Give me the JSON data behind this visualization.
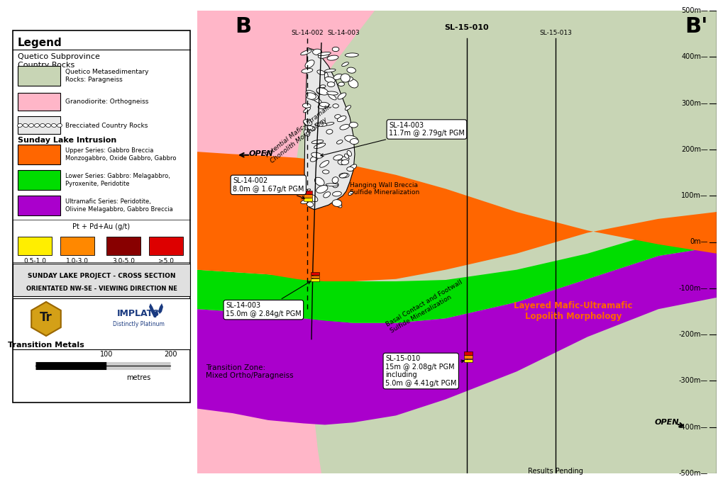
{
  "bg_color": "#ffffff",
  "colors": {
    "paragneiss": "#c8d5b5",
    "orthogneiss": "#ffb6c8",
    "orange_upper": "#ff6600",
    "green_lower": "#00dd00",
    "purple_ultra": "#aa00cc",
    "breccia_fill": "#f0f0f0"
  },
  "yticks": [
    500,
    400,
    300,
    200,
    100,
    0,
    -100,
    -200,
    -300,
    -400,
    -500
  ],
  "legend": {
    "paragneiss_color": "#c8d5b5",
    "orthogneiss_color": "#ffb6c8",
    "orange_color": "#ff6600",
    "green_color": "#00dd00",
    "purple_color": "#aa00cc",
    "pgm_colors": [
      "#ffee00",
      "#ff8800",
      "#880000",
      "#dd0000"
    ],
    "pgm_labels": [
      "0.5-1.0",
      "1.0-3.0",
      "3.0-5.0",
      ">5.0"
    ]
  }
}
